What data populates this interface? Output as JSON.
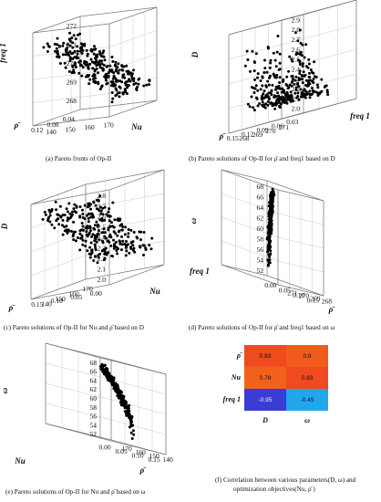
{
  "panels": [
    {
      "id": "a",
      "caption": "(a) Pareto fronts of Op-II",
      "axes": {
        "x_label": "ρ̄",
        "y_label": "Nu",
        "z_label": "freq 1",
        "x_ticks": [
          "0.04",
          "0.08",
          "0.12"
        ],
        "y_ticks": [
          "140",
          "150",
          "160",
          "170"
        ],
        "z_ticks": [
          "268",
          "269",
          "270",
          "271",
          "272"
        ]
      }
    },
    {
      "id": "b",
      "caption": "(b) Pareto solutions of Op-II for ρ̄ and freq1 based on D",
      "axes": {
        "x_label": "ρ̄",
        "y_label": "freq 1",
        "z_label": "D",
        "x_ticks": [
          "0.03",
          "0.06",
          "0.09",
          "0.12",
          "0.15"
        ],
        "y_ticks": [
          "268",
          "269",
          "270",
          "271"
        ],
        "z_ticks": [
          "2.0",
          "2.1",
          "2.2",
          "2.3",
          "2.4",
          "2.5",
          "2.6",
          "2.7",
          "2.8",
          "2.9"
        ]
      }
    },
    {
      "id": "c",
      "caption": "(c) Pareto solutions of Op-II for Nu and ρ̄ based on D",
      "axes": {
        "x_label": "ρ̄",
        "y_label": "Nu",
        "z_label": "D",
        "x_ticks": [
          "0.00",
          "0.05",
          "0.10",
          "0.15"
        ],
        "y_ticks": [
          "140",
          "150",
          "160",
          "170"
        ],
        "z_ticks": [
          "2.0",
          "2.1",
          "2.2",
          "2.3",
          "2.4",
          "2.5",
          "2.6",
          "2.7",
          "2.8"
        ]
      }
    },
    {
      "id": "d",
      "caption": "(d) Pareto solutions of Op-II for ρ̄ and freq1 based on ω",
      "axes": {
        "x_label": "ρ̄",
        "y_label": "freq 1",
        "z_label": "ω",
        "x_ticks": [
          "0.00",
          "0.05",
          "0.10",
          "0.15"
        ],
        "y_ticks": [
          "268",
          "269",
          "270",
          "271"
        ],
        "z_ticks": [
          "52",
          "54",
          "56",
          "58",
          "60",
          "62",
          "64",
          "66",
          "68"
        ]
      }
    },
    {
      "id": "e",
      "caption": "(e) Pareto solutions of Op-II for Nu and ρ̄ based on ω",
      "axes": {
        "x_label": "ρ̄",
        "y_label": "Nu",
        "z_label": "ω",
        "x_ticks": [
          "0.00",
          "0.05",
          "0.10",
          "0.15"
        ],
        "y_ticks": [
          "140",
          "150",
          "160",
          "170"
        ],
        "z_ticks": [
          "52",
          "54",
          "56",
          "58",
          "60",
          "62",
          "64",
          "66",
          "68"
        ]
      }
    },
    {
      "id": "f",
      "caption_line1": "(f) Correlation between various parameters(D, ω) and",
      "caption_line2": "optimization objectives(Nu, ρ̄ )"
    }
  ],
  "chart_data": [
    {
      "type": "scatter",
      "panel": "a",
      "title": "",
      "xlabel": "ρ̄",
      "ylabel": "Nu",
      "zlabel": "freq 1",
      "xlim": [
        0.02,
        0.15
      ],
      "ylim": [
        135,
        175
      ],
      "zlim": [
        268,
        272
      ],
      "trend": "freq 1 decreases from about 271 to about 268.5 as Nu increases from about 138 to about 172",
      "points_count_approx": 300
    },
    {
      "type": "scatter",
      "panel": "b",
      "title": "",
      "xlabel": "ρ̄",
      "ylabel": "freq 1",
      "zlabel": "D",
      "xlim": [
        0.0,
        0.15
      ],
      "ylim": [
        268,
        271.5
      ],
      "zlim": [
        2.0,
        2.9
      ],
      "trend": "D spread between about 2.05 and 2.85 across ρ̄",
      "points_count_approx": 300
    },
    {
      "type": "scatter",
      "panel": "c",
      "title": "",
      "xlabel": "ρ̄",
      "ylabel": "Nu",
      "zlabel": "D",
      "xlim": [
        0.0,
        0.15
      ],
      "ylim": [
        135,
        175
      ],
      "zlim": [
        2.0,
        2.8
      ],
      "trend": "D decreases from about 2.8 to about 2.05 as Nu increases",
      "points_count_approx": 300
    },
    {
      "type": "scatter",
      "panel": "d",
      "title": "",
      "xlabel": "ρ̄",
      "ylabel": "freq 1",
      "zlabel": "ω",
      "xlim": [
        0.0,
        0.15
      ],
      "ylim": [
        268,
        271.5
      ],
      "zlim": [
        52,
        68
      ],
      "trend": "ω rises from about 52 to about 67 along a curved band",
      "points_count_approx": 300
    },
    {
      "type": "scatter",
      "panel": "e",
      "title": "",
      "xlabel": "ρ̄",
      "ylabel": "Nu",
      "zlabel": "ω",
      "xlim": [
        0.0,
        0.15
      ],
      "ylim": [
        135,
        175
      ],
      "zlim": [
        52,
        68
      ],
      "trend": "ω rises from about 53 to about 66 as Nu increases",
      "points_count_approx": 300
    },
    {
      "type": "heatmap",
      "panel": "f",
      "title": "",
      "rows": [
        "ρ̄",
        "Nu",
        "freq 1"
      ],
      "cols": [
        "D",
        "ω"
      ],
      "values": [
        [
          0.83,
          0.8
        ],
        [
          0.78,
          0.83
        ],
        [
          -0.95,
          -0.45
        ]
      ],
      "labels": [
        [
          "0.83",
          "0.8"
        ],
        [
          "0.78",
          "0.83"
        ],
        [
          "-0.95",
          "-0.45"
        ]
      ],
      "colors": [
        [
          "#f04a1f",
          "#f15c1c"
        ],
        [
          "#f2611c",
          "#f04a1f"
        ],
        [
          "#3b3bd6",
          "#20a7ee"
        ]
      ]
    }
  ]
}
